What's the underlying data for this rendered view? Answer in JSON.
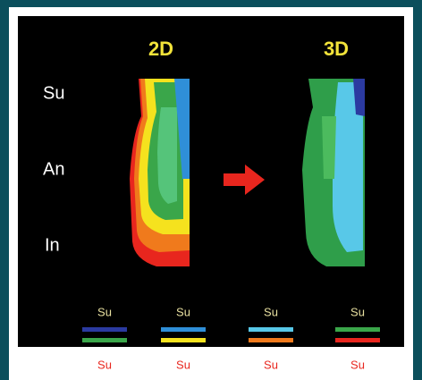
{
  "panels": [
    {
      "title": "2D"
    },
    {
      "title": "3D"
    }
  ],
  "row_labels": [
    "Su",
    "An",
    "In"
  ],
  "legend": {
    "top_labels": [
      "Su",
      "Su",
      "Su",
      "Su"
    ],
    "bottom_labels": [
      "Su",
      "Su",
      "Su",
      "Su"
    ]
  }
}
